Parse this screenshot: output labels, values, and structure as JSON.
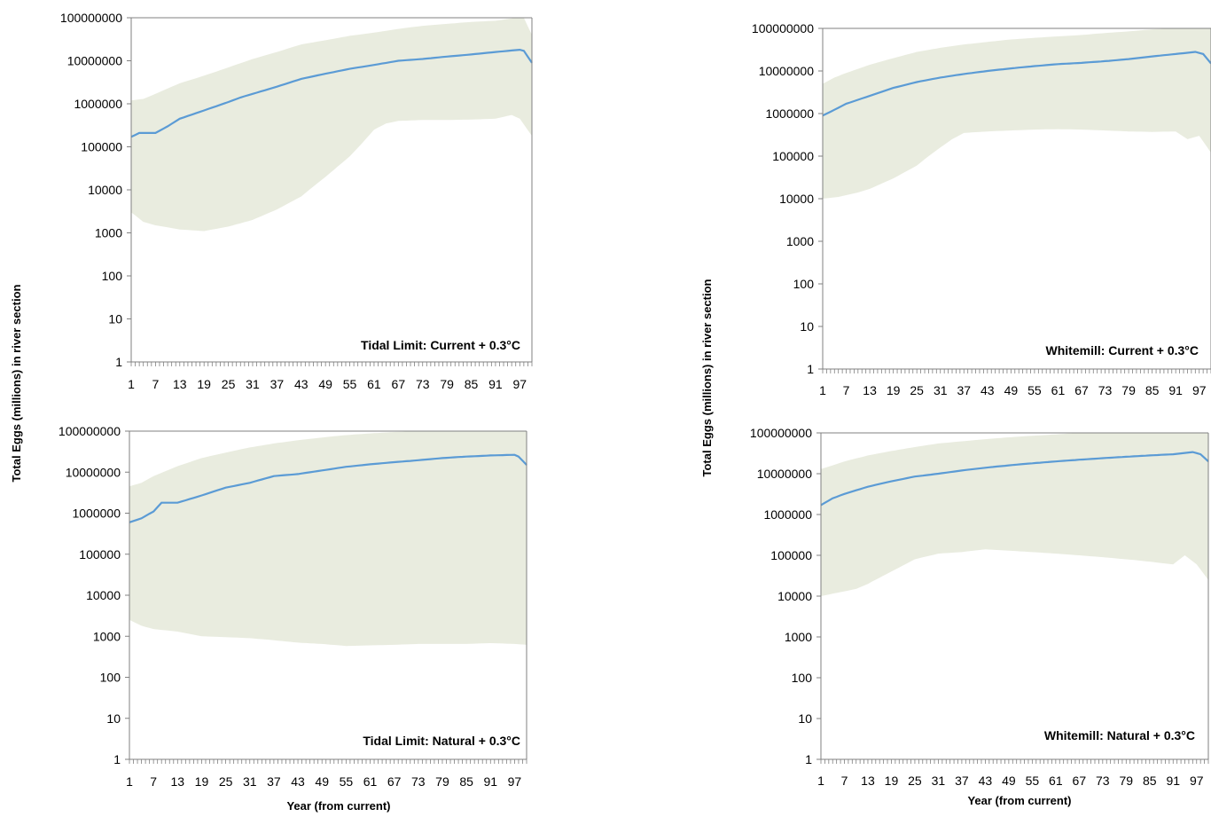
{
  "figure": {
    "ylabel_left": "Total Eggs (millions) in river section",
    "ylabel_right": "Total Eggs (millions) in river section",
    "xlabel_left": "Year (from current)",
    "xlabel_right": "Year (from current)"
  },
  "colors": {
    "band": "#e9ecdf",
    "line": "#5b9bd5",
    "axis": "#808080"
  },
  "chart_data": [
    {
      "type": "area",
      "annotation": "Tidal Limit: Current + 0.3°C",
      "yscale": "log",
      "ylim": [
        1,
        100000000
      ],
      "yticks": [
        "100000000",
        "10000000",
        "1000000",
        "100000",
        "10000",
        "1000",
        "100",
        "10",
        "1"
      ],
      "xlim": [
        1,
        100
      ],
      "xticks": [
        "1",
        "7",
        "13",
        "19",
        "25",
        "31",
        "37",
        "43",
        "49",
        "55",
        "61",
        "67",
        "73",
        "79",
        "85",
        "91",
        "97"
      ],
      "median_points": [
        [
          1,
          170000
        ],
        [
          3,
          210000
        ],
        [
          7,
          210000
        ],
        [
          10,
          300000
        ],
        [
          13,
          450000
        ],
        [
          19,
          700000
        ],
        [
          25,
          1100000
        ],
        [
          28,
          1400000
        ],
        [
          31,
          1700000
        ],
        [
          37,
          2500000
        ],
        [
          43,
          3800000
        ],
        [
          49,
          5000000
        ],
        [
          55,
          6500000
        ],
        [
          61,
          8000000
        ],
        [
          67,
          10000000
        ],
        [
          73,
          11000000
        ],
        [
          79,
          12500000
        ],
        [
          85,
          14000000
        ],
        [
          91,
          16000000
        ],
        [
          97,
          18000000
        ],
        [
          98,
          17000000
        ],
        [
          100,
          9000000
        ]
      ],
      "upper_points": [
        [
          1,
          1200000
        ],
        [
          4,
          1300000
        ],
        [
          7,
          1700000
        ],
        [
          13,
          3000000
        ],
        [
          19,
          4500000
        ],
        [
          25,
          7000000
        ],
        [
          31,
          11000000
        ],
        [
          37,
          16000000
        ],
        [
          43,
          24000000
        ],
        [
          49,
          30000000
        ],
        [
          55,
          38000000
        ],
        [
          61,
          45000000
        ],
        [
          67,
          55000000
        ],
        [
          73,
          65000000
        ],
        [
          79,
          72000000
        ],
        [
          85,
          80000000
        ],
        [
          91,
          85000000
        ],
        [
          96,
          100000000
        ],
        [
          98,
          100000000
        ],
        [
          100,
          40000000
        ]
      ],
      "lower_points": [
        [
          1,
          3000
        ],
        [
          4,
          1800
        ],
        [
          7,
          1500
        ],
        [
          13,
          1200
        ],
        [
          19,
          1100
        ],
        [
          25,
          1400
        ],
        [
          31,
          2000
        ],
        [
          37,
          3500
        ],
        [
          43,
          7000
        ],
        [
          46,
          12000
        ],
        [
          49,
          20000
        ],
        [
          55,
          60000
        ],
        [
          58,
          120000
        ],
        [
          61,
          250000
        ],
        [
          64,
          350000
        ],
        [
          67,
          400000
        ],
        [
          73,
          420000
        ],
        [
          79,
          420000
        ],
        [
          85,
          430000
        ],
        [
          91,
          450000
        ],
        [
          95,
          550000
        ],
        [
          97,
          450000
        ],
        [
          100,
          180000
        ]
      ]
    },
    {
      "type": "area",
      "annotation": "Whitemill: Current + 0.3°C",
      "yscale": "log",
      "ylim": [
        1,
        100000000
      ],
      "yticks": [
        "100000000",
        "10000000",
        "1000000",
        "100000",
        "10000",
        "1000",
        "100",
        "10",
        "1"
      ],
      "xlim": [
        1,
        100
      ],
      "xticks": [
        "1",
        "7",
        "13",
        "19",
        "25",
        "31",
        "37",
        "43",
        "49",
        "55",
        "61",
        "67",
        "73",
        "79",
        "85",
        "91",
        "97"
      ],
      "median_points": [
        [
          1,
          900000
        ],
        [
          3,
          1100000
        ],
        [
          7,
          1700000
        ],
        [
          13,
          2600000
        ],
        [
          19,
          4000000
        ],
        [
          25,
          5500000
        ],
        [
          31,
          7000000
        ],
        [
          37,
          8500000
        ],
        [
          43,
          10000000
        ],
        [
          49,
          11500000
        ],
        [
          55,
          13000000
        ],
        [
          61,
          14500000
        ],
        [
          67,
          15500000
        ],
        [
          73,
          17000000
        ],
        [
          79,
          19000000
        ],
        [
          85,
          22000000
        ],
        [
          91,
          25000000
        ],
        [
          96,
          28000000
        ],
        [
          98,
          25000000
        ],
        [
          100,
          15000000
        ]
      ],
      "upper_points": [
        [
          1,
          5000000
        ],
        [
          4,
          7000000
        ],
        [
          7,
          9000000
        ],
        [
          13,
          14000000
        ],
        [
          19,
          20000000
        ],
        [
          25,
          28000000
        ],
        [
          31,
          35000000
        ],
        [
          37,
          42000000
        ],
        [
          43,
          48000000
        ],
        [
          49,
          55000000
        ],
        [
          55,
          60000000
        ],
        [
          61,
          65000000
        ],
        [
          67,
          70000000
        ],
        [
          73,
          78000000
        ],
        [
          79,
          85000000
        ],
        [
          85,
          95000000
        ],
        [
          91,
          100000000
        ],
        [
          97,
          100000000
        ],
        [
          100,
          100000000
        ]
      ],
      "lower_points": [
        [
          1,
          10000
        ],
        [
          5,
          11000
        ],
        [
          10,
          14000
        ],
        [
          13,
          17000
        ],
        [
          19,
          30000
        ],
        [
          25,
          60000
        ],
        [
          28,
          100000
        ],
        [
          31,
          160000
        ],
        [
          34,
          250000
        ],
        [
          37,
          350000
        ],
        [
          43,
          380000
        ],
        [
          49,
          400000
        ],
        [
          55,
          420000
        ],
        [
          61,
          430000
        ],
        [
          67,
          420000
        ],
        [
          73,
          400000
        ],
        [
          79,
          380000
        ],
        [
          85,
          370000
        ],
        [
          91,
          380000
        ],
        [
          94,
          250000
        ],
        [
          97,
          300000
        ],
        [
          100,
          120000
        ]
      ]
    },
    {
      "type": "area",
      "annotation": "Tidal Limit: Natural + 0.3°C",
      "yscale": "log",
      "ylim": [
        1,
        100000000
      ],
      "yticks": [
        "100000000",
        "10000000",
        "1000000",
        "100000",
        "10000",
        "1000",
        "100",
        "10",
        "1"
      ],
      "xlim": [
        1,
        100
      ],
      "xticks": [
        "1",
        "7",
        "13",
        "19",
        "25",
        "31",
        "37",
        "43",
        "49",
        "55",
        "61",
        "67",
        "73",
        "79",
        "85",
        "91",
        "97"
      ],
      "median_points": [
        [
          1,
          600000
        ],
        [
          4,
          750000
        ],
        [
          7,
          1100000
        ],
        [
          9,
          1800000
        ],
        [
          13,
          1800000
        ],
        [
          19,
          2700000
        ],
        [
          25,
          4200000
        ],
        [
          31,
          5500000
        ],
        [
          37,
          8000000
        ],
        [
          43,
          9000000
        ],
        [
          49,
          11000000
        ],
        [
          55,
          13500000
        ],
        [
          61,
          15500000
        ],
        [
          67,
          17500000
        ],
        [
          73,
          19500000
        ],
        [
          79,
          22000000
        ],
        [
          85,
          24000000
        ],
        [
          91,
          25500000
        ],
        [
          97,
          26500000
        ],
        [
          98,
          24000000
        ],
        [
          100,
          15000000
        ]
      ],
      "upper_points": [
        [
          1,
          4500000
        ],
        [
          4,
          5500000
        ],
        [
          7,
          8000000
        ],
        [
          13,
          14000000
        ],
        [
          19,
          22000000
        ],
        [
          25,
          30000000
        ],
        [
          31,
          40000000
        ],
        [
          37,
          50000000
        ],
        [
          43,
          60000000
        ],
        [
          49,
          70000000
        ],
        [
          55,
          80000000
        ],
        [
          61,
          88000000
        ],
        [
          67,
          95000000
        ],
        [
          73,
          100000000
        ],
        [
          100,
          100000000
        ]
      ],
      "lower_points": [
        [
          1,
          2500
        ],
        [
          4,
          1800
        ],
        [
          7,
          1500
        ],
        [
          13,
          1300
        ],
        [
          19,
          1000
        ],
        [
          25,
          950
        ],
        [
          31,
          900
        ],
        [
          37,
          800
        ],
        [
          43,
          700
        ],
        [
          49,
          650
        ],
        [
          55,
          580
        ],
        [
          61,
          600
        ],
        [
          67,
          620
        ],
        [
          73,
          650
        ],
        [
          79,
          650
        ],
        [
          85,
          650
        ],
        [
          91,
          680
        ],
        [
          97,
          650
        ],
        [
          100,
          620
        ]
      ]
    },
    {
      "type": "area",
      "annotation": "Whitemill: Natural + 0.3°C",
      "yscale": "log",
      "ylim": [
        1,
        100000000
      ],
      "yticks": [
        "100000000",
        "10000000",
        "1000000",
        "100000",
        "10000",
        "1000",
        "100",
        "10",
        "1"
      ],
      "xlim": [
        1,
        100
      ],
      "xticks": [
        "1",
        "7",
        "13",
        "19",
        "25",
        "31",
        "37",
        "43",
        "49",
        "55",
        "61",
        "67",
        "73",
        "79",
        "85",
        "91",
        "97"
      ],
      "median_points": [
        [
          1,
          1700000
        ],
        [
          4,
          2500000
        ],
        [
          7,
          3200000
        ],
        [
          13,
          4800000
        ],
        [
          19,
          6500000
        ],
        [
          25,
          8500000
        ],
        [
          31,
          10000000
        ],
        [
          37,
          12000000
        ],
        [
          43,
          14000000
        ],
        [
          49,
          16000000
        ],
        [
          55,
          18000000
        ],
        [
          61,
          20000000
        ],
        [
          67,
          22000000
        ],
        [
          73,
          24000000
        ],
        [
          79,
          26000000
        ],
        [
          85,
          28000000
        ],
        [
          91,
          30000000
        ],
        [
          96,
          34000000
        ],
        [
          98,
          30000000
        ],
        [
          100,
          20000000
        ]
      ],
      "upper_points": [
        [
          1,
          13000000
        ],
        [
          4,
          16000000
        ],
        [
          7,
          20000000
        ],
        [
          13,
          28000000
        ],
        [
          19,
          36000000
        ],
        [
          25,
          45000000
        ],
        [
          31,
          55000000
        ],
        [
          37,
          62000000
        ],
        [
          43,
          70000000
        ],
        [
          49,
          78000000
        ],
        [
          55,
          85000000
        ],
        [
          61,
          92000000
        ],
        [
          67,
          100000000
        ],
        [
          100,
          100000000
        ]
      ],
      "lower_points": [
        [
          1,
          10000
        ],
        [
          5,
          12000
        ],
        [
          10,
          15000
        ],
        [
          13,
          20000
        ],
        [
          19,
          40000
        ],
        [
          25,
          80000
        ],
        [
          31,
          110000
        ],
        [
          37,
          120000
        ],
        [
          43,
          140000
        ],
        [
          49,
          130000
        ],
        [
          55,
          120000
        ],
        [
          61,
          110000
        ],
        [
          67,
          100000
        ],
        [
          73,
          90000
        ],
        [
          79,
          80000
        ],
        [
          85,
          70000
        ],
        [
          91,
          60000
        ],
        [
          94,
          100000
        ],
        [
          97,
          60000
        ],
        [
          100,
          25000
        ]
      ]
    }
  ]
}
